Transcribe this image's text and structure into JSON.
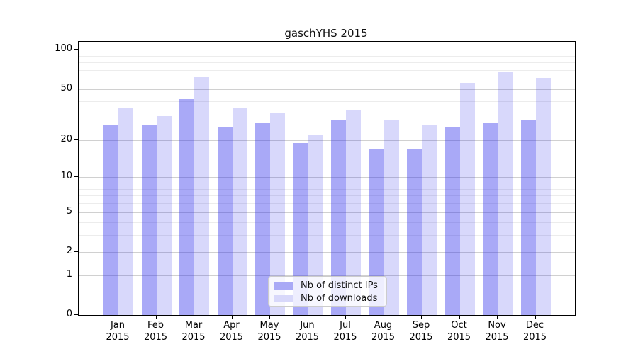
{
  "title": "gaschYHS 2015",
  "chart_data": {
    "type": "bar",
    "title": "gaschYHS 2015",
    "categories": [
      "Jan 2015",
      "Feb 2015",
      "Mar 2015",
      "Apr 2015",
      "May 2015",
      "Jun 2015",
      "Jul 2015",
      "Aug 2015",
      "Sep 2015",
      "Oct 2015",
      "Nov 2015",
      "Dec 2015"
    ],
    "x_tick_months": [
      "Jan",
      "Feb",
      "Mar",
      "Apr",
      "May",
      "Jun",
      "Jul",
      "Aug",
      "Sep",
      "Oct",
      "Nov",
      "Dec"
    ],
    "x_tick_year": "2015",
    "series": [
      {
        "name": "Nb of distinct IPs",
        "bar_color": "rgba(40,40,235,0.40)",
        "legend_color": "#a9a9f6",
        "values": [
          26,
          26,
          42,
          25,
          27,
          19,
          29,
          17,
          17,
          25,
          27,
          29
        ]
      },
      {
        "name": "Nb of downloads",
        "bar_color": "rgba(40,40,235,0.18)",
        "legend_color": "#d8d8fa",
        "values": [
          36,
          31,
          62,
          36,
          33,
          22,
          34,
          29,
          26,
          56,
          68,
          61
        ]
      }
    ],
    "yscale": "log10(value+1)",
    "y_ticks": [
      100,
      50,
      20,
      10,
      5,
      2,
      1,
      0
    ],
    "y_minor_ticks": [
      3,
      4,
      6,
      7,
      8,
      9,
      30,
      40,
      60,
      70,
      80,
      90
    ],
    "ylim": [
      0,
      115
    ],
    "grid": true,
    "legend_position": "lower center"
  },
  "legend": {
    "items": [
      {
        "label": "Nb of distinct IPs"
      },
      {
        "label": "Nb of downloads"
      }
    ]
  },
  "colors": {
    "grid_major": "#d0d0d0",
    "grid_minor": "#ececec",
    "axis_frame": "#000000",
    "background": "#ffffff"
  }
}
